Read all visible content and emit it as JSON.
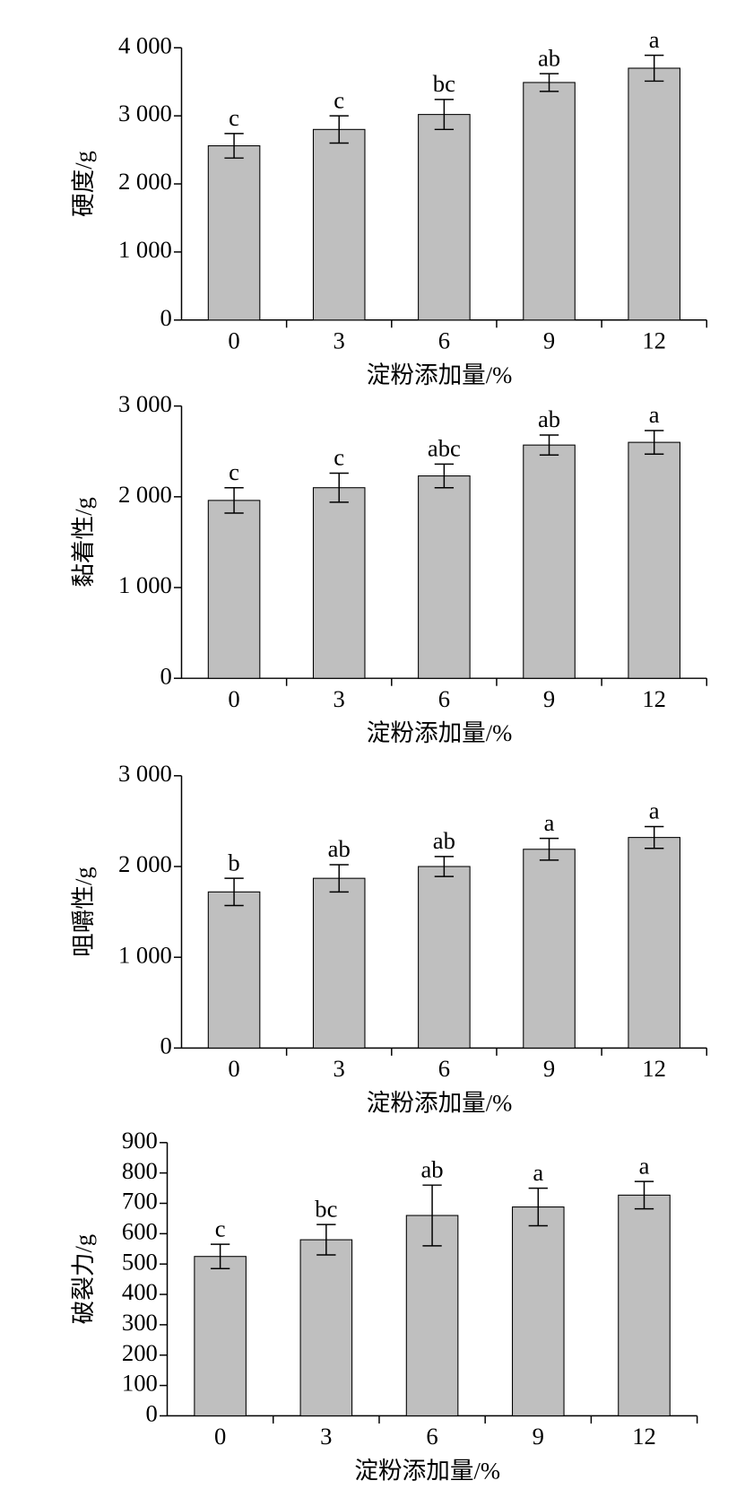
{
  "chart_data": [
    {
      "type": "bar",
      "ylabel": "硬度/g",
      "xlabel": "淀粉添加量/%",
      "categories": [
        "0",
        "3",
        "6",
        "9",
        "12"
      ],
      "values": [
        2560,
        2800,
        3020,
        3490,
        3700
      ],
      "errors": [
        180,
        200,
        220,
        130,
        190
      ],
      "annotations": [
        "c",
        "c",
        "bc",
        "ab",
        "a"
      ],
      "color": "#bfbfbf",
      "ylim": [
        0,
        4000
      ],
      "yticks": [
        0,
        {
          "value": 1000,
          "label": "1 000"
        },
        {
          "value": 2000,
          "label": "2 000"
        },
        {
          "value": 3000,
          "label": "3 000"
        },
        {
          "value": 4000,
          "label": "4 000"
        }
      ]
    },
    {
      "type": "bar",
      "ylabel": "黏着性/g",
      "xlabel": "淀粉添加量/%",
      "categories": [
        "0",
        "3",
        "6",
        "9",
        "12"
      ],
      "values": [
        1960,
        2100,
        2230,
        2570,
        2600
      ],
      "errors": [
        140,
        160,
        130,
        110,
        130
      ],
      "annotations": [
        "c",
        "c",
        "abc",
        "ab",
        "a"
      ],
      "color": "#bfbfbf",
      "ylim": [
        0,
        3000
      ],
      "yticks": [
        0,
        {
          "value": 1000,
          "label": "1 000"
        },
        {
          "value": 2000,
          "label": "2 000"
        },
        {
          "value": 3000,
          "label": "3 000"
        }
      ]
    },
    {
      "type": "bar",
      "ylabel": "咀嚼性/g",
      "xlabel": "淀粉添加量/%",
      "categories": [
        "0",
        "3",
        "6",
        "9",
        "12"
      ],
      "values": [
        1720,
        1870,
        2000,
        2190,
        2320
      ],
      "errors": [
        150,
        150,
        110,
        120,
        120
      ],
      "annotations": [
        "b",
        "ab",
        "ab",
        "a",
        "a"
      ],
      "color": "#bfbfbf",
      "ylim": [
        0,
        3000
      ],
      "yticks": [
        0,
        {
          "value": 1000,
          "label": "1 000"
        },
        {
          "value": 2000,
          "label": "2 000"
        },
        {
          "value": 3000,
          "label": "3 000"
        }
      ]
    },
    {
      "type": "bar",
      "ylabel": "破裂力/g",
      "xlabel": "淀粉添加量/%",
      "categories": [
        "0",
        "3",
        "6",
        "9",
        "12"
      ],
      "values": [
        525,
        580,
        660,
        688,
        727
      ],
      "errors": [
        40,
        50,
        100,
        62,
        45
      ],
      "annotations": [
        "c",
        "bc",
        "ab",
        "a",
        "a"
      ],
      "color": "#bfbfbf",
      "ylim": [
        0,
        900
      ],
      "yticks": [
        0,
        100,
        200,
        300,
        400,
        500,
        600,
        700,
        800,
        900
      ]
    }
  ]
}
